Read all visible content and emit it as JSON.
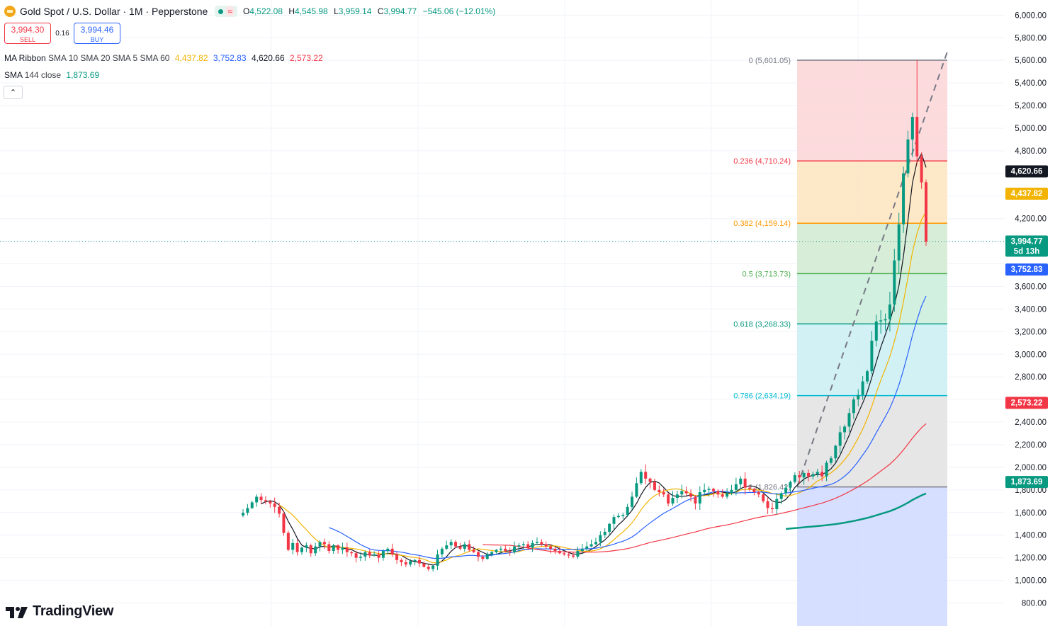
{
  "header": {
    "symbol": "Gold Spot / U.S. Dollar · 1M · Pepperstone",
    "status_icon": "market-open-dot",
    "wave_icon": "≈",
    "open_label": "O",
    "open": "4,522.08",
    "high_label": "H",
    "high": "4,545.98",
    "low_label": "L",
    "low": "3,959.14",
    "close_label": "C",
    "close": "3,994.77",
    "change": "−545.06 (−12.01%)"
  },
  "trade": {
    "sell_price": "3,994.30",
    "sell_label": "SELL",
    "spread": "0.16",
    "buy_price": "3,994.46",
    "buy_label": "BUY"
  },
  "indicators": {
    "ribbon_name": "MA Ribbon",
    "ribbon_params": "SMA 10 SMA 20 SMA 5 SMA 60",
    "ribbon_values": [
      "4,437.82",
      "3,752.83",
      "4,620.66",
      "2,573.22"
    ],
    "sma_name": "SMA",
    "sma_params": "144 close",
    "sma_value": "1,873.69"
  },
  "brand": {
    "name": "TradingView"
  },
  "colors": {
    "up": "#089981",
    "down": "#f23645",
    "sma5": "#131722",
    "sma10": "#f2b400",
    "sma20": "#2962ff",
    "sma60": "#f23645",
    "sma144": "#089981"
  },
  "chart_data": {
    "type": "line",
    "title": "Gold Spot / U.S. Dollar · 1M · Pepperstone",
    "xlabel": "",
    "ylabel": "",
    "ylim": [
      730,
      6100
    ],
    "y_ticks": [
      "6,000.00",
      "5,800.00",
      "5,600.00",
      "5,400.00",
      "5,200.00",
      "5,000.00",
      "4,800.00",
      "4,200.00",
      "3,600.00",
      "3,400.00",
      "3,200.00",
      "3,000.00",
      "2,800.00",
      "2,400.00",
      "2,200.00",
      "2,000.00",
      "1,800.00",
      "1,600.00",
      "1,400.00",
      "1,200.00",
      "1,000.00",
      "800.00"
    ],
    "y_tick_values": [
      6000,
      5800,
      5600,
      5400,
      5200,
      5000,
      4800,
      4200,
      3600,
      3400,
      3200,
      3000,
      2800,
      2400,
      2200,
      2000,
      1800,
      1600,
      1400,
      1200,
      1000,
      800
    ],
    "grid": true,
    "current_price": {
      "value": 3994.77,
      "label": "3,994.77",
      "countdown": "5d 13h",
      "color": "#f23645"
    },
    "price_tags": [
      {
        "label": "4,620.66",
        "value": 4620.66,
        "color": "#131722"
      },
      {
        "label": "4,437.82",
        "value": 4437.82,
        "color": "#f2b400"
      },
      {
        "label": "3,752.83",
        "value": 3752.83,
        "color": "#2962ff"
      },
      {
        "label": "2,573.22",
        "value": 2573.22,
        "color": "#f23645"
      },
      {
        "label": "1,873.69",
        "value": 1873.69,
        "color": "#089981"
      }
    ],
    "fibonacci": {
      "levels": [
        {
          "ratio": "0",
          "price": 5601.05,
          "label": "0 (5,601.05)",
          "color": "#787b86"
        },
        {
          "ratio": "0.236",
          "price": 4710.24,
          "label": "0.236 (4,710.24)",
          "color": "#f23645"
        },
        {
          "ratio": "0.382",
          "price": 4159.14,
          "label": "0.382 (4,159.14)",
          "color": "#ff9800"
        },
        {
          "ratio": "0.5",
          "price": 3713.73,
          "label": "0.5 (3,713.73)",
          "color": "#4caf50"
        },
        {
          "ratio": "0.618",
          "price": 3268.33,
          "label": "0.618 (3,268.33)",
          "color": "#089981"
        },
        {
          "ratio": "0.786",
          "price": 2634.19,
          "label": "0.786 (2,634.19)",
          "color": "#00bcd4"
        },
        {
          "ratio": "1",
          "price": 1826.42,
          "label": "1 (1,826.42)",
          "color": "#787b86"
        }
      ],
      "zones": [
        "#fcd7d9",
        "#fde6c2",
        "#d4ebd4",
        "#cdeedd",
        "#cdf0f3",
        "#e3e3e3",
        "#d1dcff"
      ]
    },
    "series": [
      {
        "name": "SMA 5",
        "color": "#131722",
        "kind": "sma",
        "period": 5
      },
      {
        "name": "SMA 10",
        "color": "#f2b400",
        "kind": "sma",
        "period": 10
      },
      {
        "name": "SMA 20",
        "color": "#2962ff",
        "kind": "sma",
        "period": 20
      },
      {
        "name": "SMA 60",
        "color": "#f23645",
        "kind": "sma",
        "period": 60
      },
      {
        "name": "SMA 144",
        "color": "#089981",
        "kind": "sma",
        "period": 144
      }
    ],
    "close": [
      1598,
      1640,
      1690,
      1740,
      1710,
      1700,
      1680,
      1650,
      1590,
      1420,
      1270,
      1330,
      1250,
      1290,
      1310,
      1240,
      1300,
      1340,
      1320,
      1260,
      1310,
      1270,
      1290,
      1250,
      1240,
      1200,
      1210,
      1250,
      1220,
      1230,
      1200,
      1260,
      1280,
      1230,
      1180,
      1160,
      1140,
      1170,
      1180,
      1150,
      1120,
      1100,
      1130,
      1230,
      1280,
      1310,
      1340,
      1300,
      1280,
      1320,
      1270,
      1250,
      1210,
      1190,
      1230,
      1250,
      1270,
      1280,
      1260,
      1250,
      1300,
      1310,
      1320,
      1290,
      1330,
      1340,
      1320,
      1300,
      1280,
      1260,
      1240,
      1230,
      1220,
      1210,
      1260,
      1280,
      1300,
      1320,
      1340,
      1400,
      1430,
      1500,
      1560,
      1570,
      1580,
      1650,
      1740,
      1860,
      1960,
      1900,
      1870,
      1800,
      1780,
      1760,
      1680,
      1730,
      1760,
      1790,
      1770,
      1740,
      1680,
      1780,
      1800,
      1810,
      1790,
      1760,
      1740,
      1770,
      1800,
      1850,
      1900,
      1820,
      1810,
      1780,
      1760,
      1700,
      1640,
      1630,
      1720,
      1770,
      1820,
      1870,
      1930,
      1910,
      1950,
      1920,
      1940,
      1960,
      1920,
      2040,
      2080,
      2190,
      2310,
      2360,
      2480,
      2600,
      2640,
      2760,
      2850,
      3120,
      3290,
      3300,
      3310,
      3440,
      3830,
      4150,
      4600,
      4900,
      5100,
      4750,
      4520,
      3995
    ]
  }
}
